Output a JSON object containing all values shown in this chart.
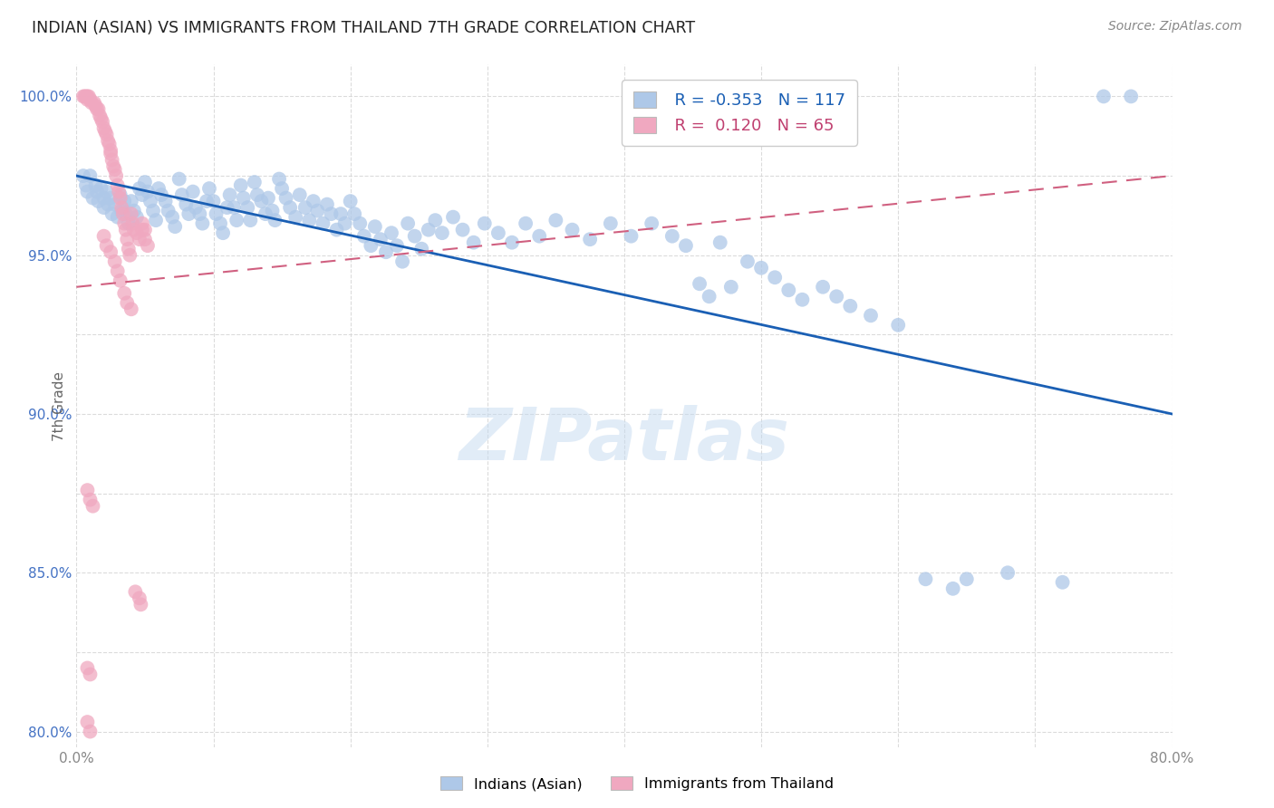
{
  "title": "INDIAN (ASIAN) VS IMMIGRANTS FROM THAILAND 7TH GRADE CORRELATION CHART",
  "source": "Source: ZipAtlas.com",
  "ylabel": "7th Grade",
  "watermark": "ZIPatlas",
  "xlim": [
    0.0,
    0.8
  ],
  "ylim": [
    0.795,
    1.01
  ],
  "x_tick_positions": [
    0.0,
    0.1,
    0.2,
    0.3,
    0.4,
    0.5,
    0.6,
    0.7,
    0.8
  ],
  "x_tick_labels": [
    "0.0%",
    "",
    "",
    "",
    "",
    "",
    "",
    "",
    "80.0%"
  ],
  "y_tick_positions": [
    0.8,
    0.825,
    0.85,
    0.875,
    0.9,
    0.925,
    0.95,
    0.975,
    1.0
  ],
  "y_tick_labels": [
    "80.0%",
    "",
    "85.0%",
    "",
    "90.0%",
    "",
    "95.0%",
    "",
    "100.0%"
  ],
  "blue_color": "#aec8e8",
  "pink_color": "#f0a8c0",
  "trendline_blue_color": "#1a5fb4",
  "trendline_pink_color": "#d06080",
  "background_color": "#ffffff",
  "grid_color": "#d8d8d8",
  "blue_scatter": [
    [
      0.005,
      0.975
    ],
    [
      0.007,
      0.972
    ],
    [
      0.008,
      0.97
    ],
    [
      0.01,
      0.975
    ],
    [
      0.012,
      0.968
    ],
    [
      0.014,
      0.972
    ],
    [
      0.015,
      0.97
    ],
    [
      0.016,
      0.967
    ],
    [
      0.018,
      0.971
    ],
    [
      0.02,
      0.968
    ],
    [
      0.02,
      0.965
    ],
    [
      0.022,
      0.97
    ],
    [
      0.023,
      0.966
    ],
    [
      0.025,
      0.968
    ],
    [
      0.026,
      0.963
    ],
    [
      0.028,
      0.966
    ],
    [
      0.03,
      0.962
    ],
    [
      0.032,
      0.969
    ],
    [
      0.033,
      0.964
    ],
    [
      0.035,
      0.967
    ],
    [
      0.036,
      0.963
    ],
    [
      0.038,
      0.96
    ],
    [
      0.04,
      0.967
    ],
    [
      0.042,
      0.964
    ],
    [
      0.044,
      0.962
    ],
    [
      0.046,
      0.971
    ],
    [
      0.048,
      0.969
    ],
    [
      0.05,
      0.973
    ],
    [
      0.052,
      0.97
    ],
    [
      0.054,
      0.967
    ],
    [
      0.056,
      0.964
    ],
    [
      0.058,
      0.961
    ],
    [
      0.06,
      0.971
    ],
    [
      0.062,
      0.969
    ],
    [
      0.065,
      0.967
    ],
    [
      0.067,
      0.964
    ],
    [
      0.07,
      0.962
    ],
    [
      0.072,
      0.959
    ],
    [
      0.075,
      0.974
    ],
    [
      0.077,
      0.969
    ],
    [
      0.08,
      0.966
    ],
    [
      0.082,
      0.963
    ],
    [
      0.085,
      0.97
    ],
    [
      0.087,
      0.965
    ],
    [
      0.09,
      0.963
    ],
    [
      0.092,
      0.96
    ],
    [
      0.095,
      0.967
    ],
    [
      0.097,
      0.971
    ],
    [
      0.1,
      0.967
    ],
    [
      0.102,
      0.963
    ],
    [
      0.105,
      0.96
    ],
    [
      0.107,
      0.957
    ],
    [
      0.11,
      0.965
    ],
    [
      0.112,
      0.969
    ],
    [
      0.115,
      0.965
    ],
    [
      0.117,
      0.961
    ],
    [
      0.12,
      0.972
    ],
    [
      0.122,
      0.968
    ],
    [
      0.125,
      0.965
    ],
    [
      0.127,
      0.961
    ],
    [
      0.13,
      0.973
    ],
    [
      0.132,
      0.969
    ],
    [
      0.135,
      0.967
    ],
    [
      0.138,
      0.963
    ],
    [
      0.14,
      0.968
    ],
    [
      0.143,
      0.964
    ],
    [
      0.145,
      0.961
    ],
    [
      0.148,
      0.974
    ],
    [
      0.15,
      0.971
    ],
    [
      0.153,
      0.968
    ],
    [
      0.156,
      0.965
    ],
    [
      0.16,
      0.962
    ],
    [
      0.163,
      0.969
    ],
    [
      0.167,
      0.965
    ],
    [
      0.17,
      0.961
    ],
    [
      0.173,
      0.967
    ],
    [
      0.176,
      0.964
    ],
    [
      0.18,
      0.96
    ],
    [
      0.183,
      0.966
    ],
    [
      0.186,
      0.963
    ],
    [
      0.19,
      0.958
    ],
    [
      0.193,
      0.963
    ],
    [
      0.196,
      0.96
    ],
    [
      0.2,
      0.967
    ],
    [
      0.203,
      0.963
    ],
    [
      0.207,
      0.96
    ],
    [
      0.21,
      0.956
    ],
    [
      0.215,
      0.953
    ],
    [
      0.218,
      0.959
    ],
    [
      0.222,
      0.955
    ],
    [
      0.226,
      0.951
    ],
    [
      0.23,
      0.957
    ],
    [
      0.234,
      0.953
    ],
    [
      0.238,
      0.948
    ],
    [
      0.242,
      0.96
    ],
    [
      0.247,
      0.956
    ],
    [
      0.252,
      0.952
    ],
    [
      0.257,
      0.958
    ],
    [
      0.262,
      0.961
    ],
    [
      0.267,
      0.957
    ],
    [
      0.275,
      0.962
    ],
    [
      0.282,
      0.958
    ],
    [
      0.29,
      0.954
    ],
    [
      0.298,
      0.96
    ],
    [
      0.308,
      0.957
    ],
    [
      0.318,
      0.954
    ],
    [
      0.328,
      0.96
    ],
    [
      0.338,
      0.956
    ],
    [
      0.35,
      0.961
    ],
    [
      0.362,
      0.958
    ],
    [
      0.375,
      0.955
    ],
    [
      0.39,
      0.96
    ],
    [
      0.405,
      0.956
    ],
    [
      0.42,
      0.96
    ],
    [
      0.435,
      0.956
    ],
    [
      0.445,
      0.953
    ],
    [
      0.455,
      0.941
    ],
    [
      0.462,
      0.937
    ],
    [
      0.47,
      0.954
    ],
    [
      0.478,
      0.94
    ],
    [
      0.49,
      0.948
    ],
    [
      0.5,
      0.946
    ],
    [
      0.51,
      0.943
    ],
    [
      0.52,
      0.939
    ],
    [
      0.53,
      0.936
    ],
    [
      0.545,
      0.94
    ],
    [
      0.555,
      0.937
    ],
    [
      0.565,
      0.934
    ],
    [
      0.58,
      0.931
    ],
    [
      0.6,
      0.928
    ],
    [
      0.62,
      0.848
    ],
    [
      0.64,
      0.845
    ],
    [
      0.65,
      0.848
    ],
    [
      0.68,
      0.85
    ],
    [
      0.72,
      0.847
    ],
    [
      0.75,
      1.0
    ],
    [
      0.77,
      1.0
    ]
  ],
  "pink_scatter": [
    [
      0.005,
      1.0
    ],
    [
      0.006,
      1.0
    ],
    [
      0.007,
      1.0
    ],
    [
      0.008,
      1.0
    ],
    [
      0.008,
      0.999
    ],
    [
      0.009,
      1.0
    ],
    [
      0.01,
      0.999
    ],
    [
      0.011,
      0.998
    ],
    [
      0.013,
      0.998
    ],
    [
      0.014,
      0.997
    ],
    [
      0.015,
      0.996
    ],
    [
      0.016,
      0.996
    ],
    [
      0.017,
      0.994
    ],
    [
      0.018,
      0.993
    ],
    [
      0.019,
      0.992
    ],
    [
      0.02,
      0.99
    ],
    [
      0.021,
      0.989
    ],
    [
      0.022,
      0.988
    ],
    [
      0.023,
      0.986
    ],
    [
      0.024,
      0.985
    ],
    [
      0.025,
      0.983
    ],
    [
      0.025,
      0.982
    ],
    [
      0.026,
      0.98
    ],
    [
      0.027,
      0.978
    ],
    [
      0.028,
      0.977
    ],
    [
      0.029,
      0.975
    ],
    [
      0.03,
      0.972
    ],
    [
      0.031,
      0.97
    ],
    [
      0.032,
      0.968
    ],
    [
      0.033,
      0.965
    ],
    [
      0.034,
      0.963
    ],
    [
      0.035,
      0.96
    ],
    [
      0.036,
      0.958
    ],
    [
      0.037,
      0.955
    ],
    [
      0.038,
      0.952
    ],
    [
      0.039,
      0.95
    ],
    [
      0.04,
      0.963
    ],
    [
      0.041,
      0.96
    ],
    [
      0.042,
      0.958
    ],
    [
      0.044,
      0.957
    ],
    [
      0.046,
      0.955
    ],
    [
      0.048,
      0.958
    ],
    [
      0.05,
      0.955
    ],
    [
      0.052,
      0.953
    ],
    [
      0.02,
      0.956
    ],
    [
      0.022,
      0.953
    ],
    [
      0.025,
      0.951
    ],
    [
      0.028,
      0.948
    ],
    [
      0.03,
      0.945
    ],
    [
      0.032,
      0.942
    ],
    [
      0.035,
      0.938
    ],
    [
      0.037,
      0.935
    ],
    [
      0.04,
      0.933
    ],
    [
      0.008,
      0.876
    ],
    [
      0.01,
      0.873
    ],
    [
      0.012,
      0.871
    ],
    [
      0.043,
      0.844
    ],
    [
      0.046,
      0.842
    ],
    [
      0.047,
      0.84
    ],
    [
      0.008,
      0.82
    ],
    [
      0.01,
      0.818
    ],
    [
      0.008,
      0.803
    ],
    [
      0.01,
      0.8
    ],
    [
      0.048,
      0.96
    ],
    [
      0.05,
      0.958
    ]
  ],
  "blue_trend_x": [
    0.0,
    0.8
  ],
  "blue_trend_y": [
    0.975,
    0.9
  ],
  "pink_trend_x": [
    0.0,
    0.8
  ],
  "pink_trend_y": [
    0.94,
    0.975
  ]
}
